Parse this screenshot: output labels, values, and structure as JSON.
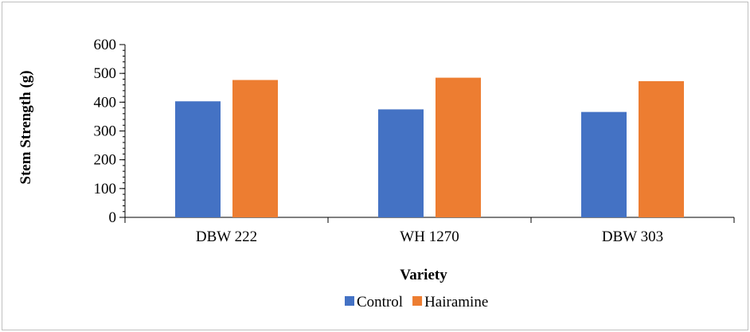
{
  "chart_data": {
    "type": "bar",
    "categories": [
      "DBW 222",
      "WH 1270",
      "DBW 303"
    ],
    "series": [
      {
        "name": "Control",
        "values": [
          403,
          375,
          366
        ]
      },
      {
        "name": "Hairamine",
        "values": [
          477,
          485,
          473
        ]
      }
    ],
    "title": "",
    "xlabel": "Variety",
    "ylabel": "Stem Strength (g)",
    "ylim": [
      0,
      600
    ],
    "yticks": [
      0,
      100,
      200,
      300,
      400,
      500,
      600
    ],
    "grid": false,
    "legend_position": "bottom",
    "colors": {
      "Control": "#4472c4",
      "Hairamine": "#ed7d31"
    }
  }
}
